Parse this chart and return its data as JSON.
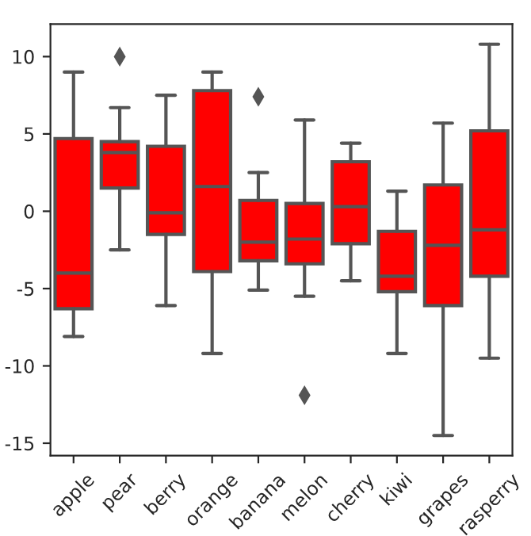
{
  "chart_data": {
    "type": "box",
    "categories": [
      "apple",
      "pear",
      "berry",
      "orange",
      "banana",
      "melon",
      "cherry",
      "kiwi",
      "grapes",
      "rasperry"
    ],
    "color": "#ff0000",
    "boxes": [
      {
        "low": -8.1,
        "q1": -6.3,
        "median": -4.0,
        "q3": 4.7,
        "high": 9.0
      },
      {
        "low": -2.5,
        "q1": 1.5,
        "median": 3.8,
        "q3": 4.5,
        "high": 6.7,
        "outliers": [
          10.0
        ]
      },
      {
        "low": -6.1,
        "q1": -1.5,
        "median": -0.1,
        "q3": 4.2,
        "high": 7.5
      },
      {
        "low": -9.2,
        "q1": -3.9,
        "median": 1.6,
        "q3": 7.8,
        "high": 9.0
      },
      {
        "low": -5.1,
        "q1": -3.2,
        "median": -2.0,
        "q3": 0.7,
        "high": 2.5,
        "outliers": [
          7.4
        ]
      },
      {
        "low": -5.5,
        "q1": -3.4,
        "median": -1.8,
        "q3": 0.5,
        "high": 5.9,
        "outliers": [
          -11.9
        ]
      },
      {
        "low": -4.5,
        "q1": -2.1,
        "median": 0.3,
        "q3": 3.2,
        "high": 4.4
      },
      {
        "low": -9.2,
        "q1": -5.2,
        "median": -4.2,
        "q3": -1.3,
        "high": 1.3
      },
      {
        "low": -14.5,
        "q1": -6.1,
        "median": -2.2,
        "q3": 1.7,
        "high": 5.7
      },
      {
        "low": -9.5,
        "q1": -4.2,
        "median": -1.2,
        "q3": 5.2,
        "high": 10.8
      }
    ],
    "ylim": [
      -15.8,
      12.1
    ],
    "yticks": [
      -15,
      -10,
      -5,
      0,
      5,
      10
    ],
    "grid": false,
    "marker": "diamond"
  }
}
